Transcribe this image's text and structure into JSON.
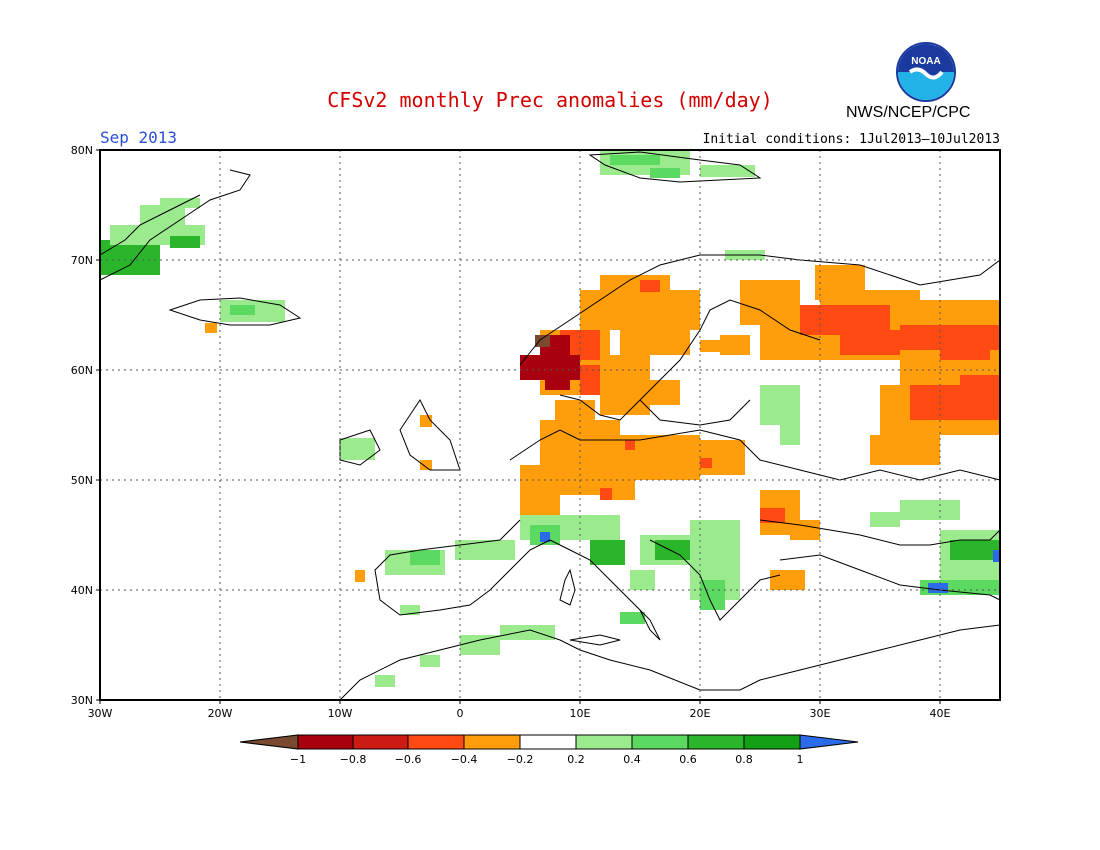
{
  "header": {
    "title": "CFSv2 monthly Prec anomalies (mm/day)",
    "month": "Sep 2013",
    "initial_conditions": "Initial conditions: 1Jul2013–10Jul2013",
    "agency": "NWS/NCEP/CPC",
    "logo_text": "NOAA"
  },
  "map": {
    "lat_labels": [
      "80N",
      "70N",
      "60N",
      "50N",
      "40N",
      "30N"
    ],
    "lon_labels": [
      "30W",
      "20W",
      "10W",
      "0",
      "10E",
      "20E",
      "30E",
      "40E"
    ]
  },
  "legend": {
    "tick_labels": [
      "−1",
      "−0.8",
      "−0.6",
      "−0.4",
      "−0.2",
      "0.2",
      "0.4",
      "0.6",
      "0.8",
      "1"
    ],
    "colors": [
      "#7a4a30",
      "#a8000e",
      "#cc1a14",
      "#ff4a14",
      "#ff9e0a",
      "#ffffff",
      "#9beb8e",
      "#5cd960",
      "#2bb52b",
      "#14a014",
      "#2b6ae8"
    ]
  }
}
